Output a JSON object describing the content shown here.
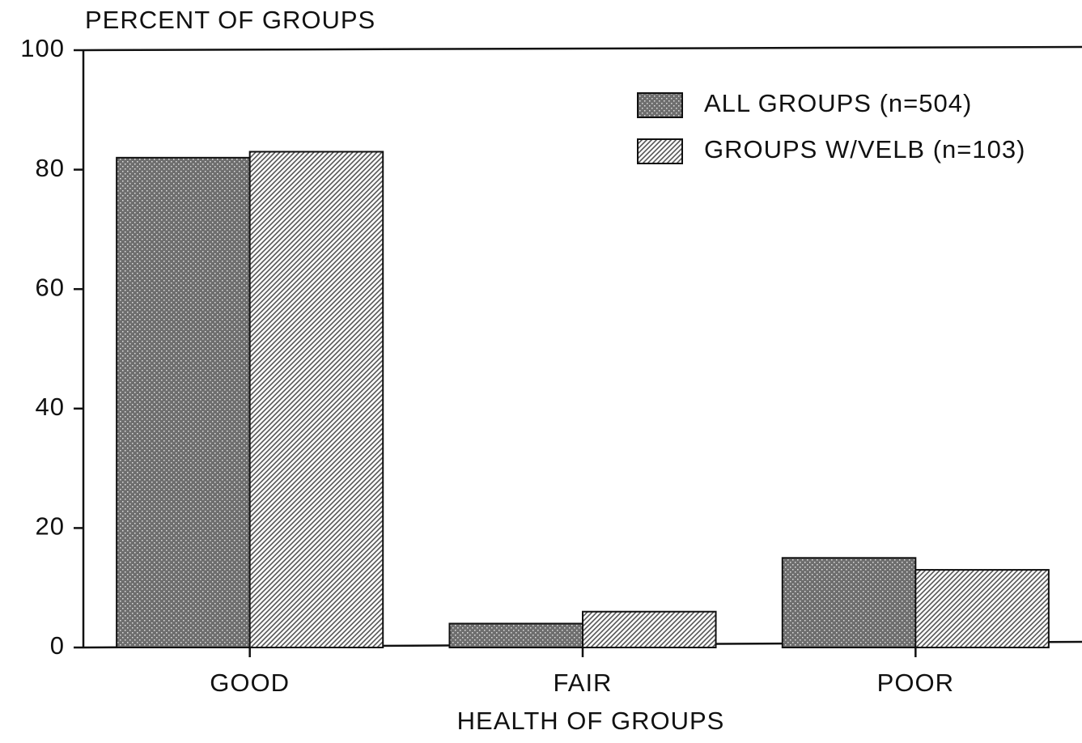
{
  "chart_data": {
    "type": "bar",
    "y_label": "PERCENT OF GROUPS",
    "x_label": "HEALTH OF GROUPS",
    "categories": [
      "GOOD",
      "FAIR",
      "POOR"
    ],
    "series": [
      {
        "name": "ALL GROUPS (n=504)",
        "color": "#6e6e6e",
        "pattern": "stipple",
        "values": [
          82,
          4,
          15
        ]
      },
      {
        "name": "GROUPS W/VELB (n=103)",
        "color": "#555555",
        "pattern": "hatch",
        "values": [
          83,
          6,
          13
        ]
      }
    ],
    "ylim": [
      0,
      100
    ],
    "yticks": [
      0,
      20,
      40,
      60,
      80,
      100
    ],
    "grid": false,
    "legend": "top-right"
  }
}
